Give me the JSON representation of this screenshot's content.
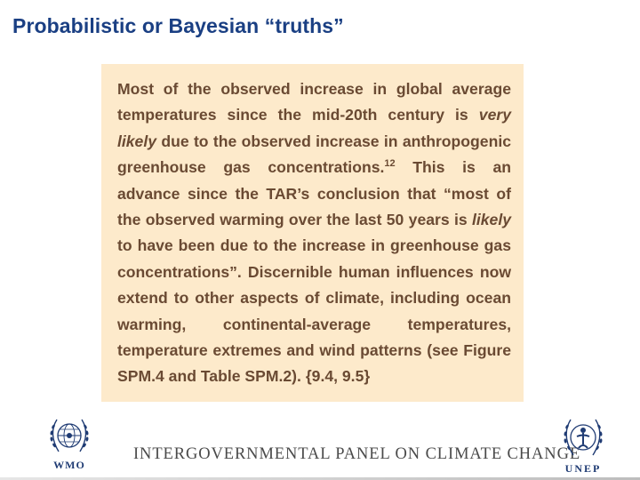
{
  "slide": {
    "title": "Probabilistic or Bayesian “truths”"
  },
  "quote": {
    "part1": "Most of the observed increase in global average temperatures since the mid-20th century is ",
    "em1": "very likely",
    "part2": " due to the observed increase in anthropogenic greenhouse gas concentrations.",
    "footnote": "12",
    "part3": " This is an advance since the TAR’s conclusion that “most of the observed warming over the last 50 years is ",
    "em2": "likely",
    "part4": " to have been due to the increase in greenhouse gas concentrations”. Discernible human influences now extend to other aspects of climate, including ocean warming, continental-average temperatures, temperature extremes and wind patterns (see Figure SPM.4 and Table SPM.2). {9.4, 9.5}"
  },
  "footer": {
    "organization": "INTERGOVERNMENTAL PANEL ON CLIMATE CHANGE",
    "left_logo_label": "WMO",
    "right_logo_label": "UNEP",
    "left_logo_icon": "wmo-emblem-icon",
    "right_logo_icon": "unep-emblem-icon"
  },
  "colors": {
    "title": "#1a3f83",
    "box_background": "#fdeacb",
    "quote_text": "#6a4a33",
    "logo": "#1f3b73"
  }
}
